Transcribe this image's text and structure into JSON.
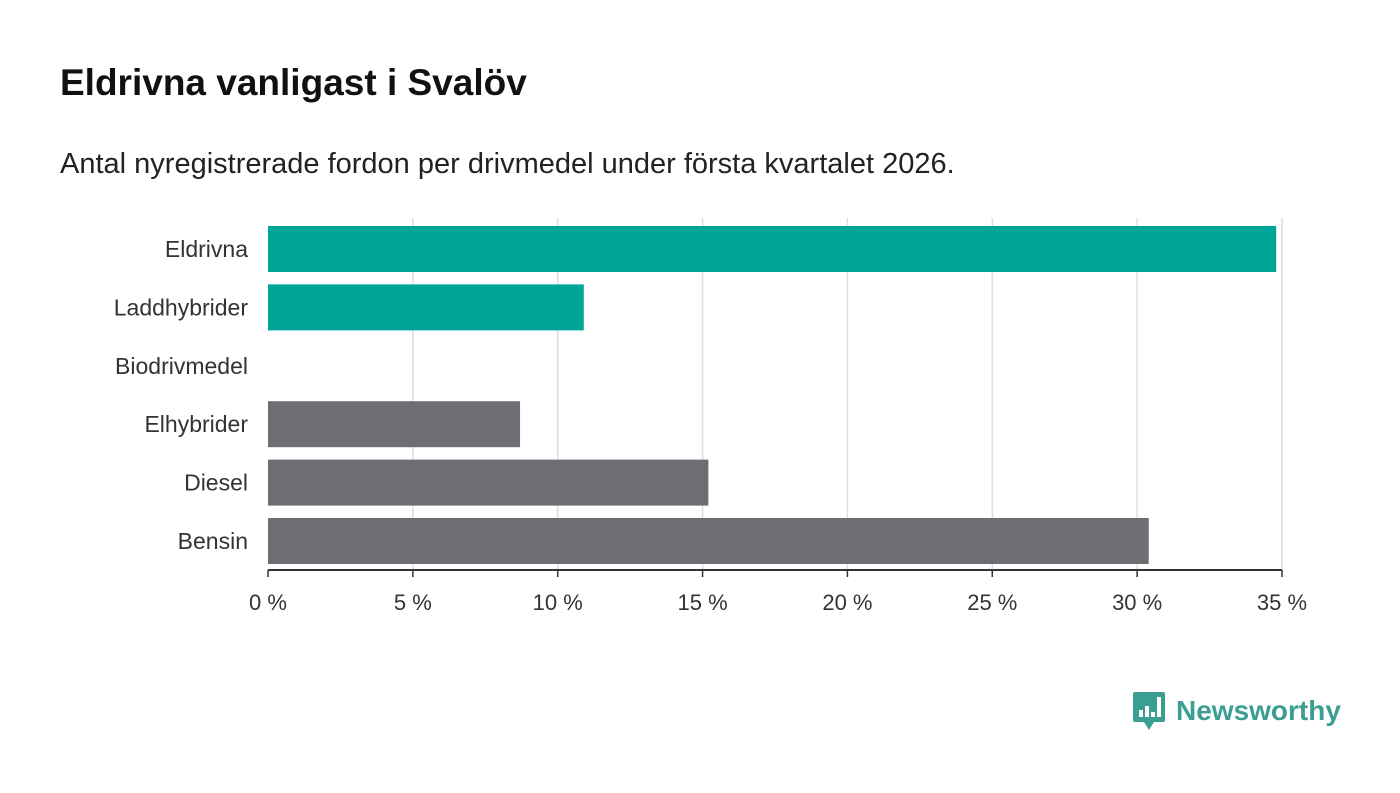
{
  "chart_data": {
    "type": "bar",
    "orientation": "horizontal",
    "title": "Eldrivna vanligast i Svalöv",
    "subtitle": "Antal nyregistrerade fordon per drivmedel under första kvartalet 2026.",
    "categories": [
      "Eldrivna",
      "Laddhybrider",
      "Biodrivmedel",
      "Elhybrider",
      "Diesel",
      "Bensin"
    ],
    "values": [
      34.8,
      10.9,
      0,
      8.7,
      15.2,
      30.4
    ],
    "colors": [
      "#00a59a",
      "#00a59a",
      "#00a59a",
      "#6e6d74",
      "#6e6d74",
      "#6e6d74"
    ],
    "xlim": [
      0,
      35
    ],
    "xticks": [
      0,
      5,
      10,
      15,
      20,
      25,
      30,
      35
    ],
    "xtick_labels": [
      "0 %",
      "5 %",
      "10 %",
      "15 %",
      "20 %",
      "25 %",
      "30 %",
      "35 %"
    ],
    "xlabel": "",
    "ylabel": "",
    "grid": true
  },
  "brand": {
    "name": "Newsworthy",
    "color": "#3a9e92",
    "icon": "bar-chart-speech-bubble-icon"
  }
}
